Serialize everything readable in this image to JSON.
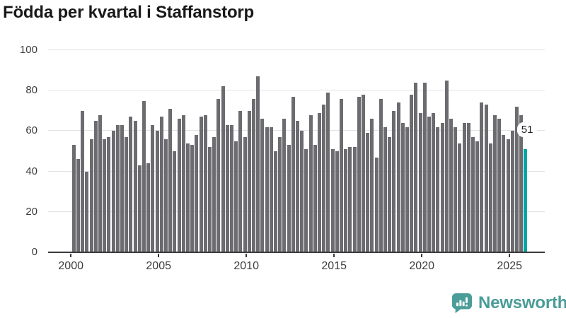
{
  "page": {
    "title": "Födda per kvartal i Staffanstorp"
  },
  "chart_data": {
    "type": "bar",
    "title": "Födda per kvartal i Staffanstorp",
    "xlabel": "",
    "ylabel": "",
    "ylim": [
      0,
      100
    ],
    "grid": "horizontal",
    "legend": "none",
    "y_tick_labels": [
      "0",
      "20",
      "40",
      "60",
      "80",
      "100"
    ],
    "x_tick_labels": [
      "2000",
      "2005",
      "2010",
      "2015",
      "2020",
      "2025"
    ],
    "categories": [
      "2000 Q1",
      "2000 Q2",
      "2000 Q3",
      "2000 Q4",
      "2001 Q1",
      "2001 Q2",
      "2001 Q3",
      "2001 Q4",
      "2002 Q1",
      "2002 Q2",
      "2002 Q3",
      "2002 Q4",
      "2003 Q1",
      "2003 Q2",
      "2003 Q3",
      "2003 Q4",
      "2004 Q1",
      "2004 Q2",
      "2004 Q3",
      "2004 Q4",
      "2005 Q1",
      "2005 Q2",
      "2005 Q3",
      "2005 Q4",
      "2006 Q1",
      "2006 Q2",
      "2006 Q3",
      "2006 Q4",
      "2007 Q1",
      "2007 Q2",
      "2007 Q3",
      "2007 Q4",
      "2008 Q1",
      "2008 Q2",
      "2008 Q3",
      "2008 Q4",
      "2009 Q1",
      "2009 Q2",
      "2009 Q3",
      "2009 Q4",
      "2010 Q1",
      "2010 Q2",
      "2010 Q3",
      "2010 Q4",
      "2011 Q1",
      "2011 Q2",
      "2011 Q3",
      "2011 Q4",
      "2012 Q1",
      "2012 Q2",
      "2012 Q3",
      "2012 Q4",
      "2013 Q1",
      "2013 Q2",
      "2013 Q3",
      "2013 Q4",
      "2014 Q1",
      "2014 Q2",
      "2014 Q3",
      "2014 Q4",
      "2015 Q1",
      "2015 Q2",
      "2015 Q3",
      "2015 Q4",
      "2016 Q1",
      "2016 Q2",
      "2016 Q3",
      "2016 Q4",
      "2017 Q1",
      "2017 Q2",
      "2017 Q3",
      "2017 Q4",
      "2018 Q1",
      "2018 Q2",
      "2018 Q3",
      "2018 Q4",
      "2019 Q1",
      "2019 Q2",
      "2019 Q3",
      "2019 Q4",
      "2020 Q1",
      "2020 Q2",
      "2020 Q3",
      "2020 Q4",
      "2021 Q1",
      "2021 Q2",
      "2021 Q3",
      "2021 Q4",
      "2022 Q1",
      "2022 Q2",
      "2022 Q3",
      "2022 Q4",
      "2023 Q1",
      "2023 Q2",
      "2023 Q3",
      "2023 Q4",
      "2024 Q1",
      "2024 Q2",
      "2024 Q3",
      "2024 Q4",
      "2025 Q1",
      "2025 Q2",
      "2025 Q3",
      "2025 Q4"
    ],
    "values": [
      53,
      46,
      70,
      40,
      56,
      65,
      68,
      56,
      57,
      60,
      63,
      63,
      57,
      67,
      65,
      43,
      75,
      44,
      63,
      60,
      67,
      56,
      71,
      50,
      66,
      68,
      54,
      53,
      58,
      67,
      68,
      52,
      57,
      76,
      82,
      63,
      63,
      55,
      70,
      57,
      70,
      76,
      87,
      66,
      62,
      62,
      50,
      57,
      66,
      53,
      77,
      65,
      60,
      51,
      68,
      53,
      69,
      73,
      79,
      51,
      50,
      76,
      51,
      52,
      52,
      77,
      78,
      59,
      66,
      47,
      76,
      62,
      57,
      70,
      74,
      64,
      62,
      78,
      84,
      69,
      84,
      67,
      69,
      62,
      64,
      85,
      66,
      62,
      54,
      64,
      64,
      57,
      55,
      74,
      73,
      54,
      68,
      66,
      58,
      56,
      60,
      72,
      68,
      51
    ],
    "bar_color": "#6c6c70",
    "highlight_color": "#00a5a3",
    "highlight_index": 103,
    "annotation": {
      "text": "51",
      "target": "2025 Q4"
    }
  },
  "footer": {
    "brand": "Newsworthy",
    "brand_color": "#4a9d98",
    "logo_icon": "newsworthy-speech-bubble-bar-chart-icon"
  }
}
